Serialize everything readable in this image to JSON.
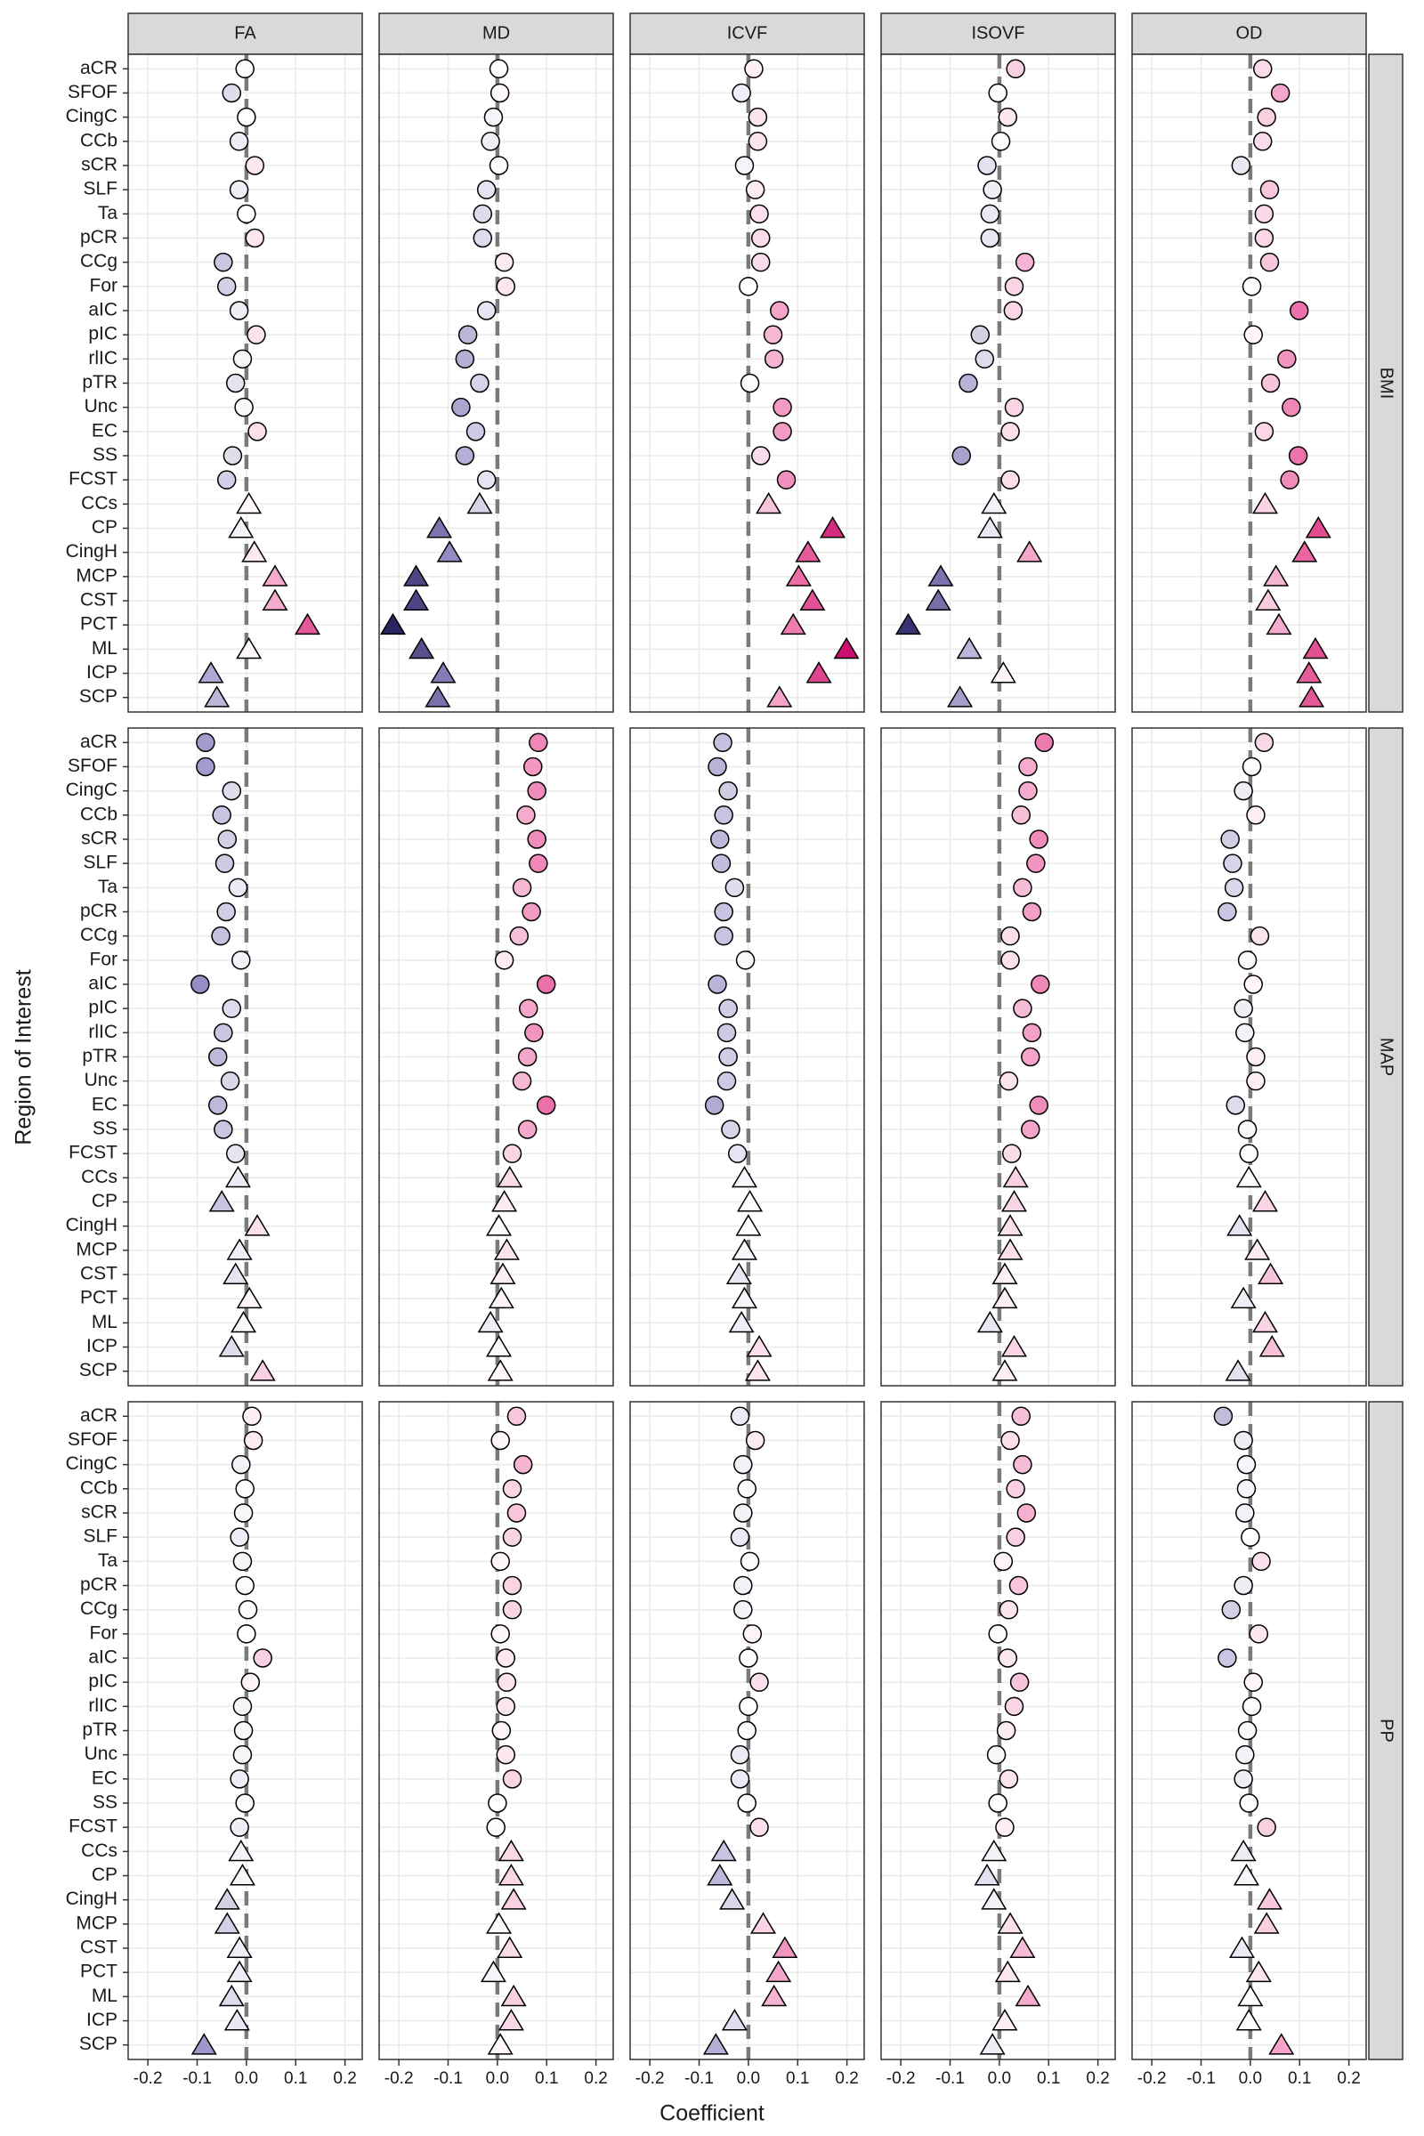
{
  "chart_data": {
    "type": "scatter",
    "x_label": "Coefficient",
    "y_label": "Region of Interest",
    "columns": [
      "FA",
      "MD",
      "ICVF",
      "ISOVF",
      "OD"
    ],
    "rows": [
      "BMI",
      "MAP",
      "PP"
    ],
    "categories": [
      "aCR",
      "SFOF",
      "CingC",
      "CCb",
      "sCR",
      "SLF",
      "Ta",
      "pCR",
      "CCg",
      "For",
      "aIC",
      "pIC",
      "rlIC",
      "pTR",
      "Unc",
      "EC",
      "SS",
      "FCST",
      "CCs",
      "CP",
      "CingH",
      "MCP",
      "CST",
      "PCT",
      "ML",
      "ICP",
      "SCP"
    ],
    "shapes": [
      "circle",
      "circle",
      "circle",
      "circle",
      "circle",
      "circle",
      "circle",
      "circle",
      "circle",
      "circle",
      "circle",
      "circle",
      "circle",
      "circle",
      "circle",
      "circle",
      "circle",
      "circle",
      "triangle",
      "triangle",
      "triangle",
      "triangle",
      "triangle",
      "triangle",
      "triangle",
      "triangle",
      "triangle"
    ],
    "xlim": [
      -0.24,
      0.235
    ],
    "xticks": [
      -0.2,
      -0.1,
      {
        "value": 0,
        "label": "0.0"
      },
      0.1,
      0.2
    ],
    "reference_line": 0,
    "grid": true,
    "color_scale": {
      "values": [
        -0.2,
        -0.1,
        0,
        0.1,
        0.2
      ],
      "colors": [
        "#2b2463",
        "#8f86c0",
        "#ffffff",
        "#ec6fa8",
        "#cc0f6f"
      ]
    },
    "values": [
      [
        [
          -0.003,
          -0.03,
          0.0,
          -0.015,
          0.017,
          -0.015,
          0.0,
          0.017,
          -0.047,
          -0.04,
          -0.015,
          0.02,
          -0.008,
          -0.022,
          -0.005,
          0.022,
          -0.028,
          -0.04,
          0.005,
          -0.011,
          0.016,
          0.058,
          0.058,
          0.124,
          0.005,
          -0.072,
          -0.06
        ],
        [
          0.003,
          0.005,
          -0.008,
          -0.014,
          0.003,
          -0.022,
          -0.03,
          -0.03,
          0.014,
          0.017,
          -0.022,
          -0.06,
          -0.066,
          -0.036,
          -0.074,
          -0.044,
          -0.066,
          -0.022,
          -0.036,
          -0.118,
          -0.097,
          -0.165,
          -0.165,
          -0.212,
          -0.154,
          -0.11,
          -0.121
        ],
        [
          0.011,
          -0.014,
          0.019,
          0.019,
          -0.008,
          0.014,
          0.022,
          0.025,
          0.025,
          0.0,
          0.063,
          0.05,
          0.052,
          0.003,
          0.069,
          0.069,
          0.025,
          0.077,
          0.041,
          0.171,
          0.121,
          0.102,
          0.13,
          0.091,
          0.199,
          0.143,
          0.063
        ],
        [
          0.033,
          -0.003,
          0.017,
          0.003,
          -0.025,
          -0.014,
          -0.019,
          -0.019,
          0.052,
          0.03,
          0.028,
          -0.039,
          -0.03,
          -0.063,
          0.03,
          0.022,
          -0.077,
          0.022,
          -0.011,
          -0.019,
          0.061,
          -0.119,
          -0.124,
          -0.185,
          -0.061,
          0.008,
          -0.08
        ],
        [
          0.025,
          0.061,
          0.033,
          0.025,
          -0.019,
          0.039,
          0.028,
          0.028,
          0.039,
          0.003,
          0.099,
          0.006,
          0.074,
          0.041,
          0.083,
          0.028,
          0.097,
          0.08,
          0.03,
          0.138,
          0.11,
          0.052,
          0.036,
          0.058,
          0.132,
          0.119,
          0.124
        ]
      ],
      [
        [
          -0.083,
          -0.083,
          -0.03,
          -0.05,
          -0.039,
          -0.044,
          -0.017,
          -0.041,
          -0.052,
          -0.011,
          -0.094,
          -0.03,
          -0.047,
          -0.058,
          -0.033,
          -0.058,
          -0.047,
          -0.022,
          -0.017,
          -0.05,
          0.022,
          -0.014,
          -0.022,
          0.006,
          -0.006,
          -0.03,
          0.033
        ],
        [
          0.083,
          0.072,
          0.08,
          0.058,
          0.08,
          0.083,
          0.05,
          0.069,
          0.044,
          0.014,
          0.099,
          0.063,
          0.074,
          0.061,
          0.05,
          0.099,
          0.061,
          0.03,
          0.025,
          0.014,
          0.003,
          0.019,
          0.011,
          0.008,
          -0.014,
          0.003,
          0.006
        ],
        [
          -0.052,
          -0.063,
          -0.041,
          -0.05,
          -0.058,
          -0.055,
          -0.028,
          -0.05,
          -0.05,
          -0.006,
          -0.063,
          -0.041,
          -0.044,
          -0.041,
          -0.044,
          -0.069,
          -0.036,
          -0.022,
          -0.008,
          0.003,
          0.0,
          -0.008,
          -0.019,
          -0.008,
          -0.014,
          0.022,
          0.019
        ],
        [
          0.091,
          0.058,
          0.058,
          0.044,
          0.08,
          0.074,
          0.047,
          0.066,
          0.022,
          0.022,
          0.083,
          0.047,
          0.066,
          0.063,
          0.019,
          0.08,
          0.063,
          0.025,
          0.033,
          0.03,
          0.022,
          0.022,
          0.011,
          0.011,
          -0.019,
          0.03,
          0.011
        ],
        [
          0.028,
          0.003,
          -0.014,
          0.011,
          -0.041,
          -0.036,
          -0.033,
          -0.047,
          0.019,
          -0.006,
          0.006,
          -0.014,
          -0.011,
          0.011,
          0.011,
          -0.03,
          -0.006,
          -0.003,
          -0.003,
          0.03,
          -0.022,
          0.014,
          0.041,
          -0.014,
          0.03,
          0.044,
          -0.025
        ]
      ],
      [
        [
          0.011,
          0.014,
          -0.011,
          -0.003,
          -0.006,
          -0.014,
          -0.008,
          -0.003,
          0.003,
          0.0,
          0.033,
          0.008,
          -0.008,
          -0.006,
          -0.008,
          -0.014,
          -0.003,
          -0.014,
          -0.011,
          -0.008,
          -0.039,
          -0.039,
          -0.014,
          -0.014,
          -0.03,
          -0.019,
          -0.086
        ],
        [
          0.039,
          0.006,
          0.052,
          0.03,
          0.039,
          0.03,
          0.006,
          0.03,
          0.03,
          0.006,
          0.017,
          0.019,
          0.017,
          0.008,
          0.017,
          0.03,
          0.0,
          -0.003,
          0.028,
          0.028,
          0.033,
          0.003,
          0.025,
          -0.008,
          0.033,
          0.028,
          0.006
        ],
        [
          -0.017,
          0.014,
          -0.011,
          -0.003,
          -0.011,
          -0.017,
          0.003,
          -0.011,
          -0.011,
          0.008,
          0.0,
          0.022,
          0.0,
          -0.003,
          -0.017,
          -0.017,
          -0.003,
          0.022,
          -0.05,
          -0.058,
          -0.033,
          0.03,
          0.074,
          0.061,
          0.052,
          -0.028,
          -0.066
        ],
        [
          0.044,
          0.022,
          0.047,
          0.033,
          0.055,
          0.033,
          0.008,
          0.039,
          0.019,
          -0.003,
          0.017,
          0.041,
          0.03,
          0.014,
          -0.006,
          0.019,
          -0.003,
          0.011,
          -0.011,
          -0.025,
          -0.011,
          0.022,
          0.047,
          0.017,
          0.058,
          0.011,
          -0.014
        ],
        [
          -0.055,
          -0.014,
          -0.008,
          -0.008,
          -0.011,
          0.0,
          0.022,
          -0.014,
          -0.039,
          0.017,
          -0.047,
          0.006,
          0.003,
          -0.006,
          -0.011,
          -0.014,
          -0.003,
          0.033,
          -0.014,
          -0.008,
          0.039,
          0.033,
          -0.017,
          0.017,
          0.0,
          -0.003,
          0.063
        ]
      ]
    ]
  }
}
